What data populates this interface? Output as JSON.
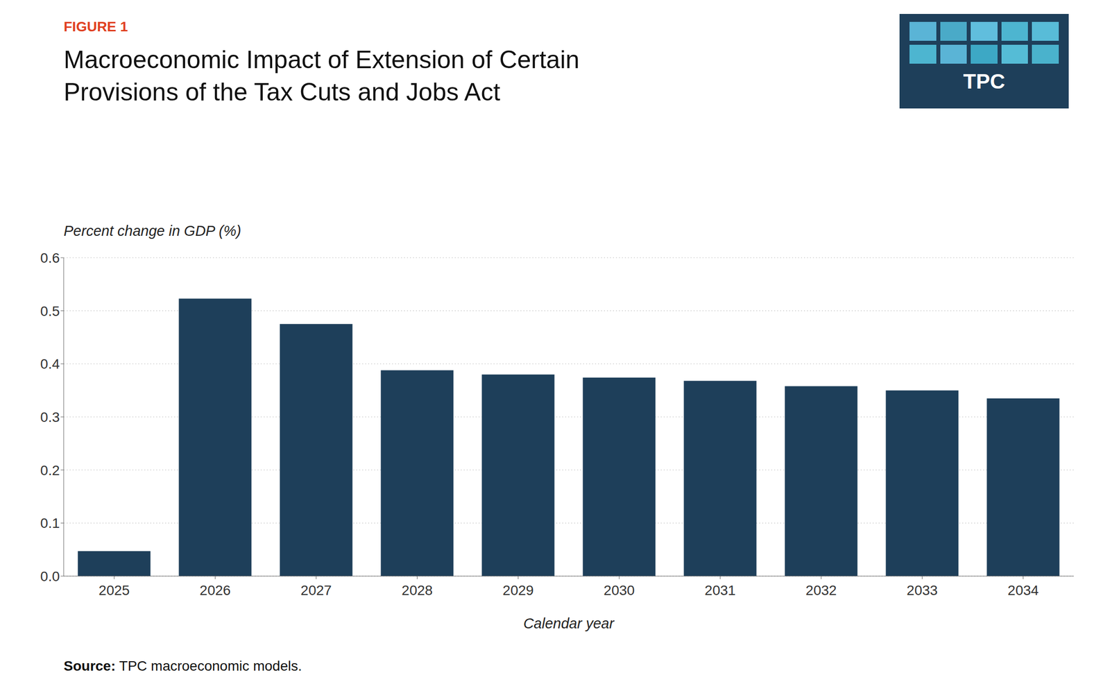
{
  "chart_data": {
    "type": "bar",
    "title": "Macroeconomic Impact of Extension of Certain Provisions of the Tax Cuts and Jobs Act",
    "x_label": "Calendar year",
    "y_label": "Percent change in GDP (%)",
    "categories": [
      "2025",
      "2026",
      "2027",
      "2028",
      "2029",
      "2030",
      "2031",
      "2032",
      "2033",
      "2034"
    ],
    "values": [
      0.047,
      0.523,
      0.475,
      0.388,
      0.38,
      0.374,
      0.368,
      0.358,
      0.35,
      0.335
    ],
    "color": "#1e3f5a",
    "ylim": [
      0,
      0.6
    ],
    "yticks": [
      {
        "value": 0,
        "label": "0.0"
      },
      0.1,
      0.2,
      0.3,
      0.4,
      0.5,
      0.6
    ],
    "grid": true,
    "annotations": [
      {
        "text": "FIGURE 1",
        "color": "#e04020"
      },
      {
        "text": "Source: TPC macroeconomic models."
      },
      {
        "text": "TPC",
        "color": "#1e3f5a",
        "colors": [
          "#5ab4d6",
          "#4aaac8",
          "#60bedd",
          "#4db5d0",
          "#58bcd8",
          "#4db5d0",
          "#5ab4d6",
          "#3da8c5",
          "#55bcd6",
          "#4ab2cc"
        ]
      }
    ]
  }
}
